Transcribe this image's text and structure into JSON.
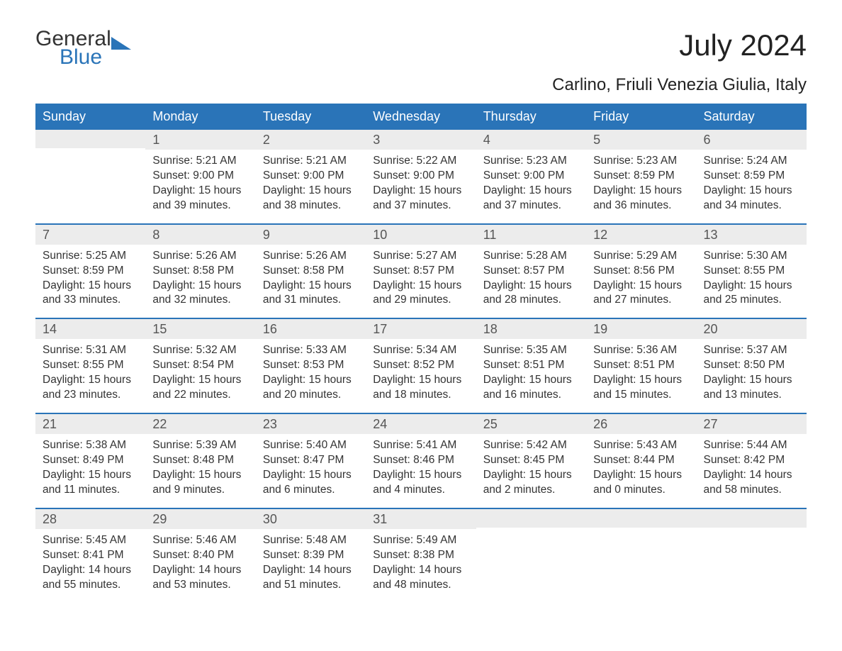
{
  "logo": {
    "word1": "General",
    "word2": "Blue",
    "accent_color": "#2a74b8"
  },
  "title": "July 2024",
  "location": "Carlino, Friuli Venezia Giulia, Italy",
  "day_headers": [
    "Sunday",
    "Monday",
    "Tuesday",
    "Wednesday",
    "Thursday",
    "Friday",
    "Saturday"
  ],
  "colors": {
    "header_bg": "#2a74b8",
    "header_text": "#ffffff",
    "daynum_bg": "#ececec",
    "body_text": "#333333",
    "page_bg": "#ffffff"
  },
  "typography": {
    "title_fontsize": 42,
    "location_fontsize": 24,
    "header_fontsize": 18,
    "daynum_fontsize": 18,
    "body_fontsize": 15.5
  },
  "labels": {
    "sunrise": "Sunrise:",
    "sunset": "Sunset:",
    "daylight": "Daylight:"
  },
  "weeks": [
    [
      null,
      {
        "n": "1",
        "sunrise": "5:21 AM",
        "sunset": "9:00 PM",
        "daylight": "15 hours and 39 minutes."
      },
      {
        "n": "2",
        "sunrise": "5:21 AM",
        "sunset": "9:00 PM",
        "daylight": "15 hours and 38 minutes."
      },
      {
        "n": "3",
        "sunrise": "5:22 AM",
        "sunset": "9:00 PM",
        "daylight": "15 hours and 37 minutes."
      },
      {
        "n": "4",
        "sunrise": "5:23 AM",
        "sunset": "9:00 PM",
        "daylight": "15 hours and 37 minutes."
      },
      {
        "n": "5",
        "sunrise": "5:23 AM",
        "sunset": "8:59 PM",
        "daylight": "15 hours and 36 minutes."
      },
      {
        "n": "6",
        "sunrise": "5:24 AM",
        "sunset": "8:59 PM",
        "daylight": "15 hours and 34 minutes."
      }
    ],
    [
      {
        "n": "7",
        "sunrise": "5:25 AM",
        "sunset": "8:59 PM",
        "daylight": "15 hours and 33 minutes."
      },
      {
        "n": "8",
        "sunrise": "5:26 AM",
        "sunset": "8:58 PM",
        "daylight": "15 hours and 32 minutes."
      },
      {
        "n": "9",
        "sunrise": "5:26 AM",
        "sunset": "8:58 PM",
        "daylight": "15 hours and 31 minutes."
      },
      {
        "n": "10",
        "sunrise": "5:27 AM",
        "sunset": "8:57 PM",
        "daylight": "15 hours and 29 minutes."
      },
      {
        "n": "11",
        "sunrise": "5:28 AM",
        "sunset": "8:57 PM",
        "daylight": "15 hours and 28 minutes."
      },
      {
        "n": "12",
        "sunrise": "5:29 AM",
        "sunset": "8:56 PM",
        "daylight": "15 hours and 27 minutes."
      },
      {
        "n": "13",
        "sunrise": "5:30 AM",
        "sunset": "8:55 PM",
        "daylight": "15 hours and 25 minutes."
      }
    ],
    [
      {
        "n": "14",
        "sunrise": "5:31 AM",
        "sunset": "8:55 PM",
        "daylight": "15 hours and 23 minutes."
      },
      {
        "n": "15",
        "sunrise": "5:32 AM",
        "sunset": "8:54 PM",
        "daylight": "15 hours and 22 minutes."
      },
      {
        "n": "16",
        "sunrise": "5:33 AM",
        "sunset": "8:53 PM",
        "daylight": "15 hours and 20 minutes."
      },
      {
        "n": "17",
        "sunrise": "5:34 AM",
        "sunset": "8:52 PM",
        "daylight": "15 hours and 18 minutes."
      },
      {
        "n": "18",
        "sunrise": "5:35 AM",
        "sunset": "8:51 PM",
        "daylight": "15 hours and 16 minutes."
      },
      {
        "n": "19",
        "sunrise": "5:36 AM",
        "sunset": "8:51 PM",
        "daylight": "15 hours and 15 minutes."
      },
      {
        "n": "20",
        "sunrise": "5:37 AM",
        "sunset": "8:50 PM",
        "daylight": "15 hours and 13 minutes."
      }
    ],
    [
      {
        "n": "21",
        "sunrise": "5:38 AM",
        "sunset": "8:49 PM",
        "daylight": "15 hours and 11 minutes."
      },
      {
        "n": "22",
        "sunrise": "5:39 AM",
        "sunset": "8:48 PM",
        "daylight": "15 hours and 9 minutes."
      },
      {
        "n": "23",
        "sunrise": "5:40 AM",
        "sunset": "8:47 PM",
        "daylight": "15 hours and 6 minutes."
      },
      {
        "n": "24",
        "sunrise": "5:41 AM",
        "sunset": "8:46 PM",
        "daylight": "15 hours and 4 minutes."
      },
      {
        "n": "25",
        "sunrise": "5:42 AM",
        "sunset": "8:45 PM",
        "daylight": "15 hours and 2 minutes."
      },
      {
        "n": "26",
        "sunrise": "5:43 AM",
        "sunset": "8:44 PM",
        "daylight": "15 hours and 0 minutes."
      },
      {
        "n": "27",
        "sunrise": "5:44 AM",
        "sunset": "8:42 PM",
        "daylight": "14 hours and 58 minutes."
      }
    ],
    [
      {
        "n": "28",
        "sunrise": "5:45 AM",
        "sunset": "8:41 PM",
        "daylight": "14 hours and 55 minutes."
      },
      {
        "n": "29",
        "sunrise": "5:46 AM",
        "sunset": "8:40 PM",
        "daylight": "14 hours and 53 minutes."
      },
      {
        "n": "30",
        "sunrise": "5:48 AM",
        "sunset": "8:39 PM",
        "daylight": "14 hours and 51 minutes."
      },
      {
        "n": "31",
        "sunrise": "5:49 AM",
        "sunset": "8:38 PM",
        "daylight": "14 hours and 48 minutes."
      },
      null,
      null,
      null
    ]
  ]
}
